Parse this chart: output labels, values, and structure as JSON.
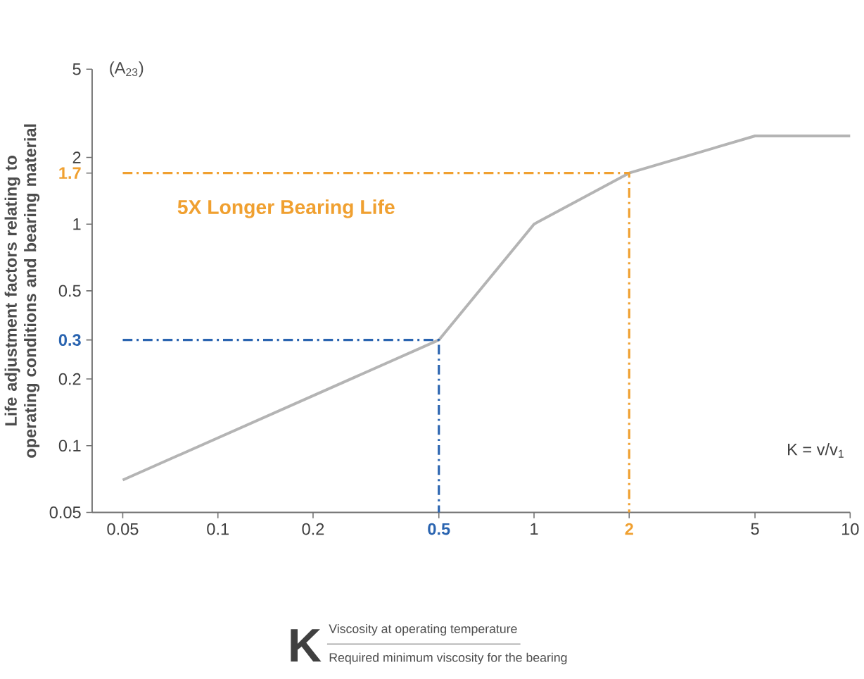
{
  "chart_data": {
    "type": "line",
    "log": "xy",
    "xlim": [
      0.04,
      10
    ],
    "ylim": [
      0.05,
      5
    ],
    "xticks": [
      0.05,
      0.1,
      0.2,
      0.5,
      1,
      2,
      5,
      10
    ],
    "yticks": [
      0.05,
      0.1,
      0.2,
      0.3,
      0.5,
      1,
      1.7,
      2,
      5
    ],
    "ylabel": "Life adjustment factors relating to operating conditions and bearing material",
    "series": [
      {
        "color": "#b4b4b4",
        "line_style": "solid",
        "x": [
          0.05,
          0.5,
          1,
          2,
          5,
          10
        ],
        "values": [
          0.07,
          0.3,
          1,
          1.7,
          2.5,
          2.5
        ]
      },
      {
        "color": "#2a64b0",
        "line_style": "dashed",
        "x": [
          0.05,
          0.5,
          0.5
        ],
        "values": [
          0.3,
          0.3,
          0.05
        ]
      },
      {
        "color": "#f0a030",
        "line_style": "dashed",
        "x": [
          0.05,
          2,
          2
        ],
        "values": [
          1.7,
          1.7,
          0.05
        ]
      }
    ],
    "annotations": [
      "(A$_{23}$)",
      "5X Longer Bearing Life",
      "K = v/v$_{1}$",
      "K",
      "Viscosity at operating temperature",
      "Required minimum viscosity for the bearing"
    ],
    "marker": "none"
  }
}
